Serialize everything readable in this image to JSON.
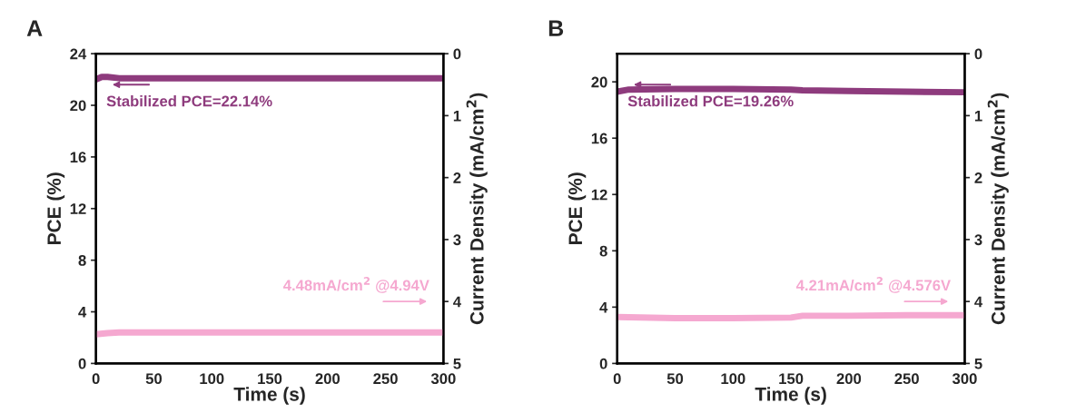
{
  "chart_data": [
    {
      "type": "line",
      "title": "A",
      "xlabel": "Time (s)",
      "ylabel": "PCE (%)",
      "y2label": "Current Density (mA/cm$^{2}$)",
      "xlim": [
        0,
        300
      ],
      "xticks": [
        0,
        50,
        100,
        150,
        200,
        250,
        300
      ],
      "ylim": [
        0,
        24
      ],
      "yticks": [
        0,
        4,
        8,
        12,
        16,
        20,
        24
      ],
      "y2lim": [
        5,
        0
      ],
      "y2ticks": [
        0,
        1,
        2,
        3,
        4,
        5
      ],
      "grid": false,
      "legend": false,
      "series": [
        {
          "color": "#8e3b7d",
          "x": [
            0,
            5,
            10,
            20,
            100,
            200,
            300
          ],
          "values": [
            22.0,
            22.2,
            22.2,
            22.1,
            22.1,
            22.1,
            22.1
          ]
        },
        {
          "color": "#f5a8d0",
          "axis": "y2",
          "x": [
            0,
            10,
            20,
            100,
            200,
            300
          ],
          "values": [
            4.53,
            4.51,
            4.5,
            4.5,
            4.5,
            4.5
          ]
        }
      ],
      "annotations": [
        "Stabilized PCE=22.14%",
        "4.48mA/cm$^{2}$ @4.94V"
      ]
    },
    {
      "type": "line",
      "title": "B",
      "xlabel": "Time (s)",
      "ylabel": "PCE (%)",
      "y2label": "Current Density (mA/cm$^{2}$)",
      "xlim": [
        0,
        300
      ],
      "xticks": [
        0,
        50,
        100,
        150,
        200,
        250,
        300
      ],
      "ylim": [
        0,
        22
      ],
      "yticks": [
        0,
        4,
        8,
        12,
        16,
        20
      ],
      "y2lim": [
        5,
        0
      ],
      "y2ticks": [
        0,
        1,
        2,
        3,
        4,
        5
      ],
      "grid": false,
      "legend": false,
      "series": [
        {
          "color": "#8e3b7d",
          "x": [
            0,
            10,
            50,
            100,
            150,
            160,
            200,
            250,
            300
          ],
          "values": [
            19.3,
            19.45,
            19.5,
            19.5,
            19.45,
            19.4,
            19.35,
            19.3,
            19.26
          ]
        },
        {
          "color": "#f5a8d0",
          "axis": "y2",
          "x": [
            0,
            50,
            100,
            150,
            160,
            200,
            250,
            300
          ],
          "values": [
            4.25,
            4.27,
            4.27,
            4.26,
            4.23,
            4.23,
            4.22,
            4.22
          ]
        }
      ],
      "annotations": [
        "Stabilized PCE=19.26%",
        "4.21mA/cm$^{2}$ @4.576V"
      ]
    }
  ]
}
